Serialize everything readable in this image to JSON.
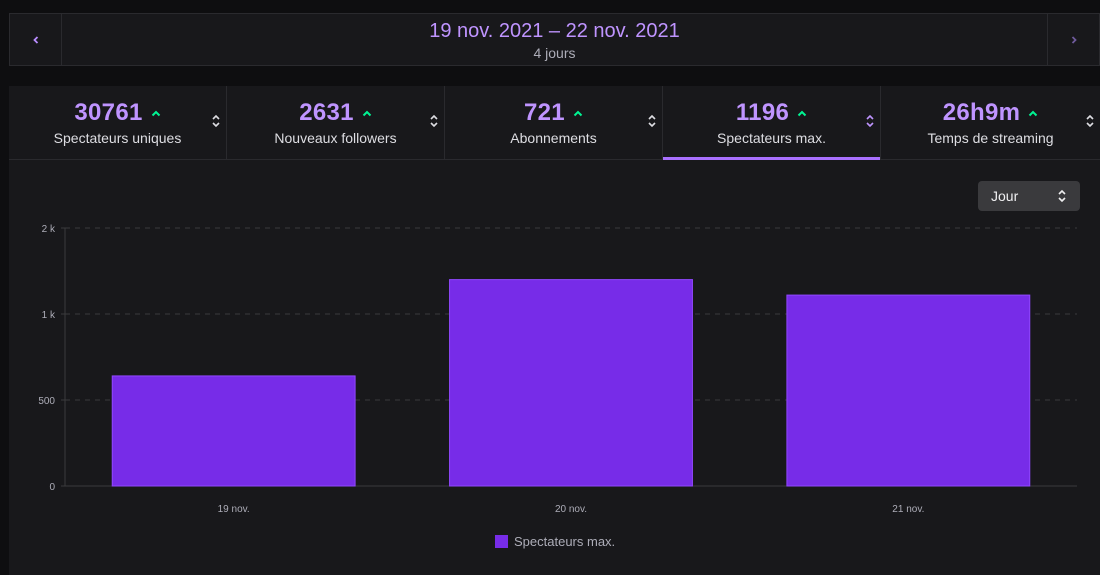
{
  "date_nav": {
    "range": "19 nov. 2021 – 22 nov. 2021",
    "days": "4 jours",
    "prev_icon": "chevron-left-icon",
    "next_icon": "chevron-right-icon"
  },
  "stats": [
    {
      "value": "30761",
      "label": "Spectateurs uniques",
      "trend": "up",
      "active": false
    },
    {
      "value": "2631",
      "label": "Nouveaux followers",
      "trend": "up",
      "active": false
    },
    {
      "value": "721",
      "label": "Abonnements",
      "trend": "up",
      "active": false
    },
    {
      "value": "1196",
      "label": "Spectateurs max.",
      "trend": "up",
      "active": true
    },
    {
      "value": "26h9m",
      "label": "Temps de streaming",
      "trend": "up",
      "active": false
    }
  ],
  "granularity_select": {
    "value": "Jour"
  },
  "colors": {
    "accent": "#bf94ff",
    "bar": "#772ce8",
    "trend_up": "#00f593",
    "panel": "#18181b"
  },
  "chart_data": {
    "type": "bar",
    "categories": [
      "19 nov.",
      "20 nov.",
      "21 nov."
    ],
    "series": [
      {
        "name": "Spectateurs max.",
        "values": [
          640,
          1200,
          1110
        ]
      }
    ],
    "yticks": [
      "0",
      "500",
      "1 k",
      "2 k"
    ],
    "ytick_values": [
      0,
      500,
      1000,
      1500
    ],
    "ylim": [
      0,
      1500
    ],
    "grid": true,
    "legend": "bottom-center"
  }
}
